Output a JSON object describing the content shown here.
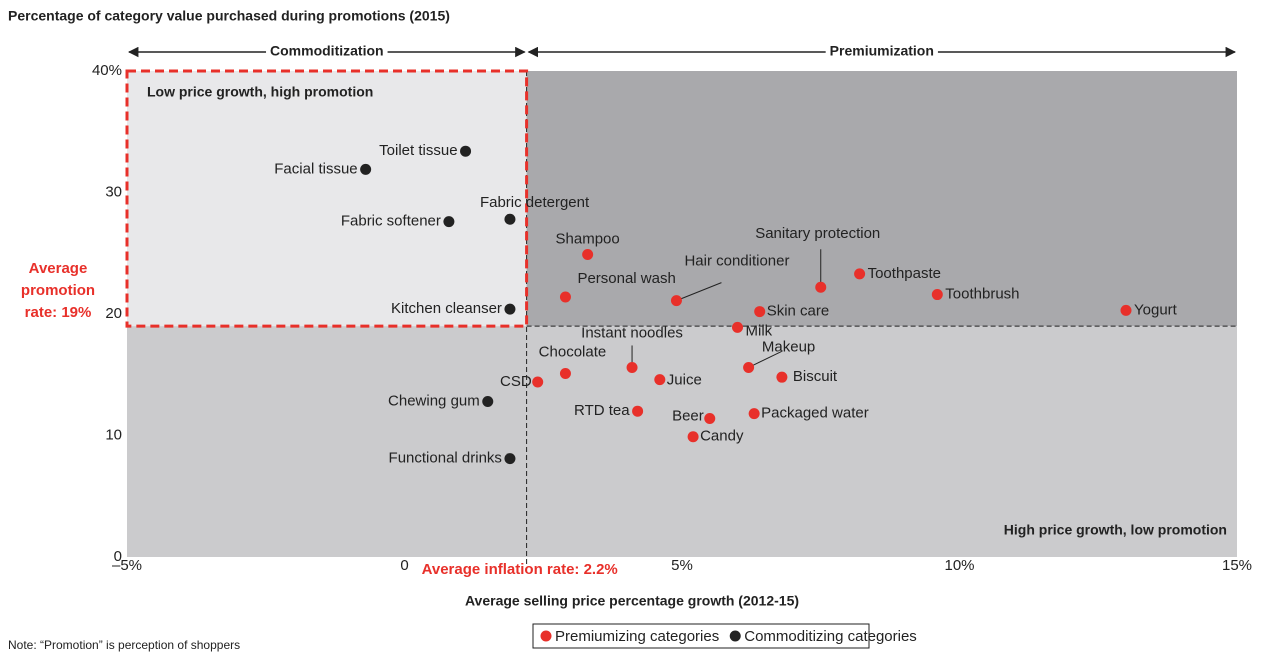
{
  "chart_data": {
    "type": "scatter",
    "title": "Percentage of category value purchased during promotions (2015)",
    "x_label": "Average selling price percentage growth (2012-15)",
    "note": "Note: “Promotion” is perception of shoppers",
    "header_left": "Commoditization",
    "header_right": "Premiumization",
    "quadrant_top_left": "Low price growth, high promotion",
    "quadrant_bottom_right": "High price growth, low promotion",
    "avg_inflation": {
      "value": 2.2,
      "label": "Average inflation rate: 2.2%"
    },
    "avg_promotion": {
      "value": 19,
      "label": "Average promotion rate: 19%"
    },
    "xlim": [
      -5,
      15
    ],
    "xticks": [
      {
        "value": -5,
        "label": "–5%"
      },
      0,
      {
        "value": 5,
        "label": "5%"
      },
      {
        "value": 10,
        "label": "10%"
      },
      {
        "value": 15,
        "label": "15%"
      }
    ],
    "ylim": [
      0,
      40
    ],
    "yticks": [
      0,
      10,
      20,
      30,
      {
        "value": 40,
        "label": "40%"
      }
    ],
    "series": [
      {
        "name": "Premiumizing categories",
        "color": "#e8302a",
        "labels": [
          "Shampoo",
          "Personal wash",
          "Hair conditioner",
          "Sanitary protection",
          "Toothpaste",
          "Toothbrush",
          "Yogurt",
          "Skin care",
          "Milk",
          "Makeup",
          "Biscuit",
          "Instant noodles",
          "Chocolate",
          "Juice",
          "CSD",
          "RTD tea",
          "Beer",
          "Packaged water",
          "Candy"
        ],
        "x": [
          3.3,
          2.9,
          4.9,
          7.5,
          8.2,
          9.6,
          13.0,
          6.4,
          6.0,
          6.2,
          6.8,
          4.1,
          2.9,
          4.6,
          2.4,
          4.2,
          5.5,
          6.3,
          5.2
        ],
        "values": [
          24.9,
          21.4,
          21.1,
          22.2,
          23.3,
          21.6,
          20.3,
          20.2,
          18.9,
          15.6,
          14.8,
          15.6,
          15.1,
          14.6,
          14.4,
          12.0,
          11.4,
          11.8,
          9.9
        ]
      },
      {
        "name": "Commoditizing categories",
        "color": "#222222",
        "labels": [
          "Toilet tissue",
          "Facial tissue",
          "Fabric softener",
          "Fabric detergent",
          "Kitchen cleanser",
          "Chewing gum",
          "Functional drinks"
        ],
        "x": [
          1.1,
          -0.7,
          0.8,
          1.9,
          1.9,
          1.5,
          1.9
        ],
        "values": [
          33.4,
          31.9,
          27.6,
          27.8,
          20.4,
          12.8,
          8.1
        ]
      }
    ]
  }
}
